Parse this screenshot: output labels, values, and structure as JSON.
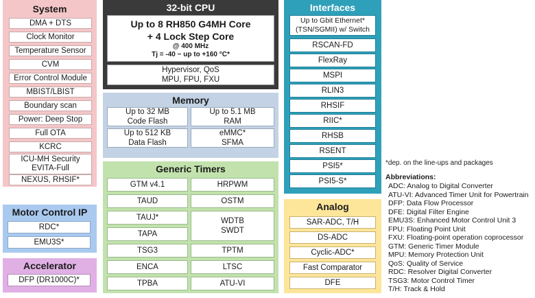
{
  "system": {
    "title": "System",
    "items": [
      "DMA + DTS",
      "Clock Monitor",
      "Temperature Sensor",
      "CVM",
      "Error Control Module",
      "MBIST/LBIST",
      "Boundary scan",
      "Power: Deep Stop",
      "Full OTA",
      "KCRC"
    ],
    "icu_line1": "ICU-MH Security",
    "icu_line2": "EVITA-Full",
    "last_item": "NEXUS, RHSIF*"
  },
  "motor": {
    "title": "Motor Control IP",
    "items": [
      "RDC*",
      "EMU3S*"
    ]
  },
  "accelerator": {
    "title": "Accelerator",
    "items": [
      "DFP (DR1000C)*"
    ]
  },
  "cpu": {
    "title": "32-bit CPU",
    "core_line1": "Up to 8 RH850 G4MH Core",
    "core_line2": "+ 4 Lock Step Core",
    "freq": "@ 400 MHz",
    "tj": "Tj = -40 ~  up to +160 °C*",
    "feat_line1": "Hypervisor, QoS",
    "feat_line2": "MPU, FPU, FXU"
  },
  "memory": {
    "title": "Memory",
    "code_flash_1": "Up to 32 MB",
    "code_flash_2": "Code Flash",
    "ram_1": "Up to 5.1 MB",
    "ram_2": "RAM",
    "data_flash_1": "Up to 512 KB",
    "data_flash_2": "Data Flash",
    "emmc_1": "eMMC*",
    "emmc_2": "SFMA"
  },
  "timers": {
    "title": "Generic Timers",
    "left": [
      "GTM v4.1",
      "TAUD",
      "TAUJ*",
      "TAPA",
      "TSG3",
      "ENCA",
      "TPBA"
    ],
    "right_top": [
      "HRPWM",
      "OSTM"
    ],
    "wdtb_1": "WDTB",
    "wdtb_2": "SWDT",
    "right_bottom": [
      "TPTM",
      "LTSC",
      "ATU-VI"
    ]
  },
  "interfaces": {
    "title": "Interfaces",
    "eth_1": "Up to Gbit Ethernet*",
    "eth_2": "(TSN/SGMII) w/ Switch",
    "items": [
      "RSCAN-FD",
      "FlexRay",
      "MSPI",
      "RLIN3",
      "RHSIF",
      "RIIC*",
      "RHSB",
      "RSENT",
      "PSI5*",
      "PSI5-S*"
    ]
  },
  "analog": {
    "title": "Analog",
    "items": [
      "SAR-ADC, T/H",
      "DS-ADC",
      "Cyclic-ADC*",
      "Fast Comparator",
      "DFE"
    ]
  },
  "notes": {
    "dep": "*dep. on the line-ups  and packages",
    "abbr_title": "Abbreviations:",
    "abbr": [
      "ADC: Analog to Digital Converter",
      "ATU-VI: Advanced Timer Unit for Powertrain",
      "DFP: Data Flow Processor",
      "DFE: Digital Filter Engine",
      "EMU3S: Enhanced Motor Control Unit 3",
      "FPU: Floating Point Unit",
      "FXU: Floating-point operation coprocessor",
      "GTM: Generic Timer Module",
      "MPU: Memory Protection Unit",
      "QoS: Quality of Service",
      "RDC: Resolver Digital Converter",
      "TSG3: Motor Control Timer",
      "T/H: Track & Hold"
    ]
  }
}
